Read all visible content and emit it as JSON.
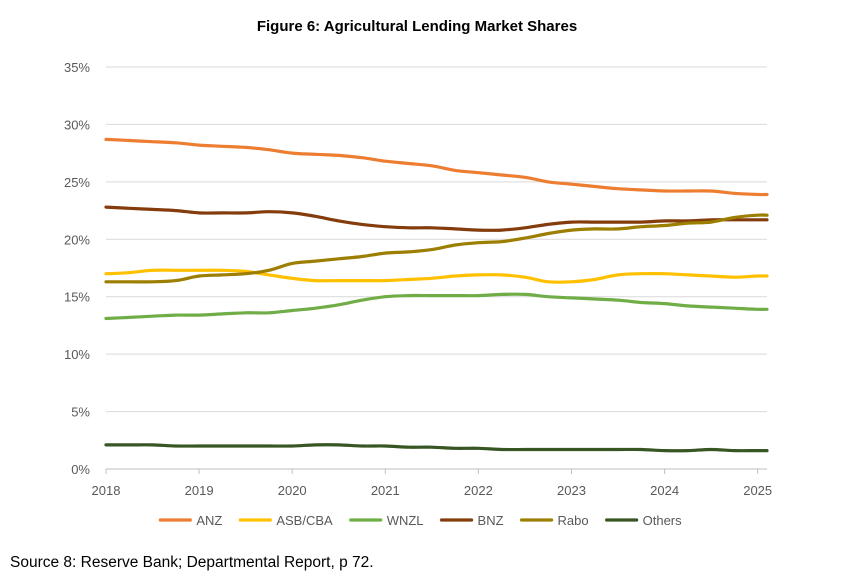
{
  "caption": "Source 8: Reserve Bank; Departmental Report, p 72.",
  "chart_data": {
    "type": "line",
    "title": "Figure 6: Agricultural Lending Market Shares",
    "xlabel": "",
    "ylabel": "",
    "xlim": [
      2018,
      2025.1
    ],
    "ylim": [
      0,
      35
    ],
    "x_ticks": [
      2018,
      2019,
      2020,
      2021,
      2022,
      2023,
      2024,
      2025
    ],
    "x_tick_labels": [
      "2018",
      "2019",
      "2020",
      "2021",
      "2022",
      "2023",
      "2024",
      "2025"
    ],
    "y_ticks": [
      0,
      5,
      10,
      15,
      20,
      25,
      30,
      35
    ],
    "y_tick_labels": [
      "0%",
      "5%",
      "10%",
      "15%",
      "20%",
      "25%",
      "30%",
      "35%"
    ],
    "grid": true,
    "legend_position": "bottom",
    "series": [
      {
        "name": "ANZ",
        "color": "#ED7D31",
        "x": [
          2018,
          2018.25,
          2018.5,
          2018.75,
          2019,
          2019.25,
          2019.5,
          2019.75,
          2020,
          2020.25,
          2020.5,
          2020.75,
          2021,
          2021.25,
          2021.5,
          2021.75,
          2022,
          2022.25,
          2022.5,
          2022.75,
          2023,
          2023.25,
          2023.5,
          2023.75,
          2024,
          2024.25,
          2024.5,
          2024.75,
          2025,
          2025.1
        ],
        "values": [
          28.7,
          28.6,
          28.5,
          28.4,
          28.2,
          28.1,
          28.0,
          27.8,
          27.5,
          27.4,
          27.3,
          27.1,
          26.8,
          26.6,
          26.4,
          26.0,
          25.8,
          25.6,
          25.4,
          25.0,
          24.8,
          24.6,
          24.4,
          24.3,
          24.2,
          24.2,
          24.2,
          24.0,
          23.9,
          23.9
        ]
      },
      {
        "name": "ASB/CBA",
        "color": "#FFC000",
        "x": [
          2018,
          2018.25,
          2018.5,
          2018.75,
          2019,
          2019.25,
          2019.5,
          2019.75,
          2020,
          2020.25,
          2020.5,
          2020.75,
          2021,
          2021.25,
          2021.5,
          2021.75,
          2022,
          2022.25,
          2022.5,
          2022.75,
          2023,
          2023.25,
          2023.5,
          2023.75,
          2024,
          2024.25,
          2024.5,
          2024.75,
          2025,
          2025.1
        ],
        "values": [
          17.0,
          17.1,
          17.3,
          17.3,
          17.3,
          17.3,
          17.2,
          16.9,
          16.6,
          16.4,
          16.4,
          16.4,
          16.4,
          16.5,
          16.6,
          16.8,
          16.9,
          16.9,
          16.7,
          16.3,
          16.3,
          16.5,
          16.9,
          17.0,
          17.0,
          16.9,
          16.8,
          16.7,
          16.8,
          16.8
        ]
      },
      {
        "name": "WNZL",
        "color": "#70AD47",
        "x": [
          2018,
          2018.25,
          2018.5,
          2018.75,
          2019,
          2019.25,
          2019.5,
          2019.75,
          2020,
          2020.25,
          2020.5,
          2020.75,
          2021,
          2021.25,
          2021.5,
          2021.75,
          2022,
          2022.25,
          2022.5,
          2022.75,
          2023,
          2023.25,
          2023.5,
          2023.75,
          2024,
          2024.25,
          2024.5,
          2024.75,
          2025,
          2025.1
        ],
        "values": [
          13.1,
          13.2,
          13.3,
          13.4,
          13.4,
          13.5,
          13.6,
          13.6,
          13.8,
          14.0,
          14.3,
          14.7,
          15.0,
          15.1,
          15.1,
          15.1,
          15.1,
          15.2,
          15.2,
          15.0,
          14.9,
          14.8,
          14.7,
          14.5,
          14.4,
          14.2,
          14.1,
          14.0,
          13.9,
          13.9
        ]
      },
      {
        "name": "BNZ",
        "color": "#843C0C",
        "x": [
          2018,
          2018.25,
          2018.5,
          2018.75,
          2019,
          2019.25,
          2019.5,
          2019.75,
          2020,
          2020.25,
          2020.5,
          2020.75,
          2021,
          2021.25,
          2021.5,
          2021.75,
          2022,
          2022.25,
          2022.5,
          2022.75,
          2023,
          2023.25,
          2023.5,
          2023.75,
          2024,
          2024.25,
          2024.5,
          2024.75,
          2025,
          2025.1
        ],
        "values": [
          22.8,
          22.7,
          22.6,
          22.5,
          22.3,
          22.3,
          22.3,
          22.4,
          22.3,
          22.0,
          21.6,
          21.3,
          21.1,
          21.0,
          21.0,
          20.9,
          20.8,
          20.8,
          21.0,
          21.3,
          21.5,
          21.5,
          21.5,
          21.5,
          21.6,
          21.6,
          21.7,
          21.7,
          21.7,
          21.7
        ]
      },
      {
        "name": "Rabo",
        "color": "#9C7E00",
        "x": [
          2018,
          2018.25,
          2018.5,
          2018.75,
          2019,
          2019.25,
          2019.5,
          2019.75,
          2020,
          2020.25,
          2020.5,
          2020.75,
          2021,
          2021.25,
          2021.5,
          2021.75,
          2022,
          2022.25,
          2022.5,
          2022.75,
          2023,
          2023.25,
          2023.5,
          2023.75,
          2024,
          2024.25,
          2024.5,
          2024.75,
          2025,
          2025.1
        ],
        "values": [
          16.3,
          16.3,
          16.3,
          16.4,
          16.8,
          16.9,
          17.0,
          17.3,
          17.9,
          18.1,
          18.3,
          18.5,
          18.8,
          18.9,
          19.1,
          19.5,
          19.7,
          19.8,
          20.1,
          20.5,
          20.8,
          20.9,
          20.9,
          21.1,
          21.2,
          21.4,
          21.5,
          21.9,
          22.1,
          22.1
        ]
      },
      {
        "name": "Others",
        "color": "#375623",
        "x": [
          2018,
          2018.25,
          2018.5,
          2018.75,
          2019,
          2019.25,
          2019.5,
          2019.75,
          2020,
          2020.25,
          2020.5,
          2020.75,
          2021,
          2021.25,
          2021.5,
          2021.75,
          2022,
          2022.25,
          2022.5,
          2022.75,
          2023,
          2023.25,
          2023.5,
          2023.75,
          2024,
          2024.25,
          2024.5,
          2024.75,
          2025,
          2025.1
        ],
        "values": [
          2.1,
          2.1,
          2.1,
          2.0,
          2.0,
          2.0,
          2.0,
          2.0,
          2.0,
          2.1,
          2.1,
          2.0,
          2.0,
          1.9,
          1.9,
          1.8,
          1.8,
          1.7,
          1.7,
          1.7,
          1.7,
          1.7,
          1.7,
          1.7,
          1.6,
          1.6,
          1.7,
          1.6,
          1.6,
          1.6
        ]
      }
    ]
  }
}
